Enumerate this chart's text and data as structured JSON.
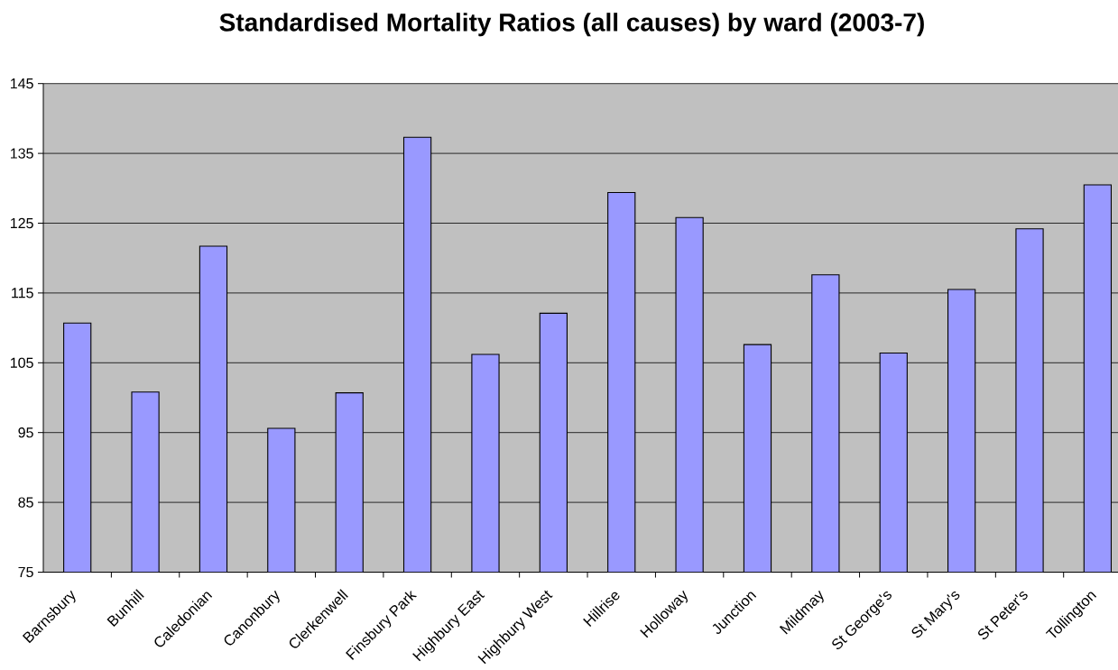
{
  "chart_data": {
    "type": "bar",
    "title": "Standardised Mortality Ratios (all causes) by ward (2003-7)",
    "categories": [
      "Barnsbury",
      "Bunhill",
      "Caledonian",
      "Canonbury",
      "Clerkenwell",
      "Finsbury Park",
      "Highbury East",
      "Highbury West",
      "Hillrise",
      "Holloway",
      "Junction",
      "Mildmay",
      "St George's",
      "St Mary's",
      "St Peter's",
      "Tollington"
    ],
    "values": [
      110.7,
      100.8,
      121.7,
      95.6,
      100.7,
      137.3,
      106.2,
      112.1,
      129.4,
      125.8,
      107.6,
      117.6,
      106.4,
      115.5,
      124.2,
      130.5
    ],
    "color": "#9999ff",
    "ylim": [
      75,
      145
    ],
    "yticks": [
      75,
      85,
      95,
      105,
      115,
      125,
      135,
      145
    ],
    "grid": "y"
  }
}
